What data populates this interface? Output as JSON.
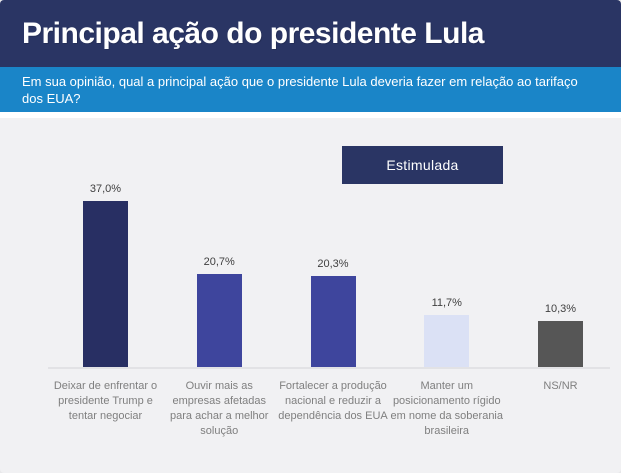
{
  "colors": {
    "header-bg": "#2A3564",
    "banner-bg": "#1A85C8",
    "badge-bg": "#2A3564",
    "body-bg": "#F1F1F3",
    "axis-line": "#E2E2E5",
    "value-label": "#3F3F3F",
    "category-label": "#7F7F7F"
  },
  "chart_data": {
    "type": "bar",
    "title": "Principal ação do presidente Lula",
    "subtitle": "Em sua opinião, qual a principal ação que o presidente Lula deveria fazer em relação ao tarifaço dos EUA?",
    "annotation": "Estimulada",
    "categories": [
      "Deixar de enfrentar o presidente Trump e tentar negociar",
      "Ouvir mais as empresas afetadas para achar a melhor solução",
      "Fortalecer a produção nacional e reduzir a dependência dos EUA",
      "Manter um posicionamento rígido em nome da soberania brasileira",
      "NS/NR"
    ],
    "values": [
      37.0,
      20.7,
      20.3,
      11.7,
      10.3
    ],
    "value_labels": [
      "37,0%",
      "20,7%",
      "20,3%",
      "11,7%",
      "10,3%"
    ],
    "bar_colors": [
      "#282F63",
      "#3E459D",
      "#3E459D",
      "#DBE1F5",
      "#565656"
    ],
    "xlabel": "",
    "ylabel": "",
    "ylim": [
      0,
      40
    ],
    "grid": false,
    "legend": false,
    "data_labels": true
  }
}
